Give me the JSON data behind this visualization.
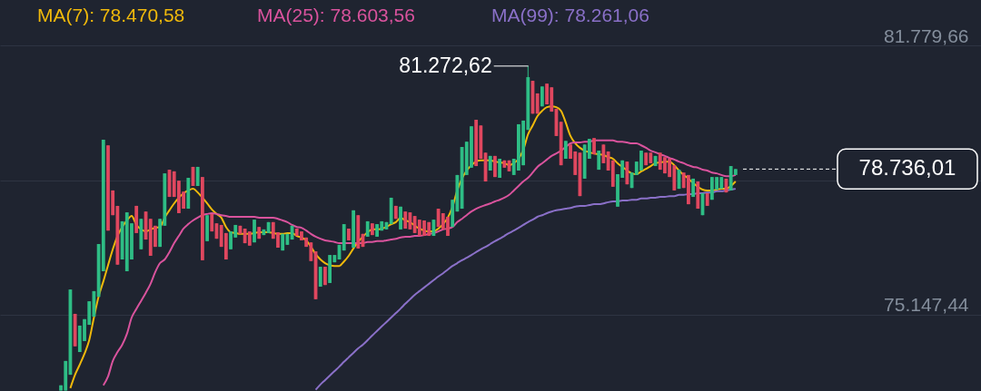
{
  "chart_data": {
    "type": "candlestick",
    "categories": [
      null,
      null,
      null,
      null,
      null,
      null,
      null,
      null,
      null,
      null,
      null,
      null,
      null,
      null,
      null,
      null,
      null,
      null,
      null,
      null,
      null,
      null,
      null,
      null,
      null,
      null,
      null,
      null,
      null,
      null,
      null,
      null,
      null,
      null,
      null,
      null,
      null,
      null,
      null,
      null,
      null,
      null,
      null,
      null,
      null,
      null,
      null,
      null,
      null,
      null,
      null,
      null,
      null,
      null,
      null,
      null,
      null,
      null,
      null,
      null,
      null,
      null,
      null,
      null,
      null,
      null,
      null,
      null,
      null,
      null,
      null,
      null,
      null,
      null,
      null,
      null,
      null,
      null,
      null,
      null,
      null,
      null,
      null,
      null,
      null,
      null,
      null,
      null,
      null,
      null,
      null,
      null,
      null,
      null,
      null,
      null,
      null,
      null,
      null,
      null,
      null,
      null,
      null,
      null,
      null,
      null,
      null,
      null,
      null,
      null,
      null,
      null,
      null,
      null,
      null,
      null,
      null,
      null,
      null,
      null,
      null,
      null,
      null,
      null,
      null,
      null,
      null,
      null,
      null,
      null,
      null,
      null,
      null,
      null,
      null,
      null,
      null,
      null,
      null,
      null,
      null,
      null,
      null,
      null
    ],
    "ohlc": [
      [
        73280,
        73410,
        73280,
        73410
      ],
      [
        73280,
        74010,
        73280,
        74010
      ],
      [
        73670,
        75770,
        73670,
        75770
      ],
      [
        75170,
        75170,
        74370,
        74370
      ],
      [
        74230,
        74880,
        74230,
        74880
      ],
      [
        74500,
        75040,
        74500,
        75040
      ],
      [
        74900,
        75480,
        74900,
        75480
      ],
      [
        75100,
        75730,
        75100,
        75730
      ],
      [
        75590,
        76890,
        75590,
        76890
      ],
      [
        76220,
        79460,
        76220,
        79460
      ],
      [
        79320,
        79320,
        77220,
        77220
      ],
      [
        78210,
        78210,
        77600,
        77600
      ],
      [
        77830,
        77830,
        76380,
        76380
      ],
      [
        76510,
        77450,
        76510,
        77450
      ],
      [
        76220,
        77670,
        76220,
        77670
      ],
      [
        76510,
        77400,
        76510,
        77400
      ],
      [
        77830,
        77830,
        77160,
        77160
      ],
      [
        76760,
        77510,
        76760,
        77510
      ],
      [
        77690,
        77690,
        77000,
        77000
      ],
      [
        77510,
        77510,
        76600,
        76600
      ],
      [
        77340,
        77340,
        76820,
        76820
      ],
      [
        76820,
        77510,
        76820,
        77510
      ],
      [
        77340,
        78630,
        77340,
        78630
      ],
      [
        78720,
        78720,
        78050,
        78050
      ],
      [
        78680,
        78680,
        78050,
        78050
      ],
      [
        78450,
        78450,
        77650,
        77650
      ],
      [
        78180,
        78180,
        77760,
        77760
      ],
      [
        77760,
        78520,
        77760,
        78520
      ],
      [
        78790,
        78790,
        78320,
        78320
      ],
      [
        78320,
        78790,
        78320,
        78790
      ],
      [
        78540,
        78540,
        76490,
        76490
      ],
      [
        76960,
        77600,
        76960,
        77600
      ],
      [
        77630,
        77630,
        77200,
        77200
      ],
      [
        77400,
        77400,
        77020,
        77020
      ],
      [
        77360,
        77360,
        76820,
        76820
      ],
      [
        77160,
        77160,
        76510,
        76510
      ],
      [
        76760,
        77200,
        76760,
        77200
      ],
      [
        77050,
        77360,
        77050,
        77360
      ],
      [
        77340,
        77340,
        77140,
        77140
      ],
      [
        77270,
        77270,
        76910,
        76910
      ],
      [
        77200,
        77200,
        76850,
        76850
      ],
      [
        76930,
        77490,
        76930,
        77490
      ],
      [
        77310,
        77310,
        77020,
        77020
      ],
      [
        77110,
        77250,
        77110,
        77250
      ],
      [
        77160,
        77430,
        77160,
        77430
      ],
      [
        77430,
        77430,
        77020,
        77020
      ],
      [
        77180,
        77180,
        76800,
        76800
      ],
      [
        76730,
        77140,
        76730,
        77140
      ],
      [
        76870,
        77140,
        76870,
        77140
      ],
      [
        77000,
        77340,
        77000,
        77340
      ],
      [
        77270,
        77270,
        77090,
        77090
      ],
      [
        77200,
        77200,
        76980,
        76980
      ],
      [
        77050,
        77050,
        76820,
        76820
      ],
      [
        76930,
        76930,
        76470,
        76470
      ],
      [
        76710,
        76710,
        75530,
        75530
      ],
      [
        75840,
        76330,
        75840,
        76330
      ],
      [
        76330,
        76330,
        75880,
        75880
      ],
      [
        75930,
        76620,
        75930,
        76620
      ],
      [
        76440,
        76620,
        76440,
        76620
      ],
      [
        76510,
        76870,
        76510,
        76870
      ],
      [
        76730,
        77380,
        76730,
        77380
      ],
      [
        77270,
        77270,
        76980,
        76980
      ],
      [
        76800,
        77720,
        76800,
        77720
      ],
      [
        77600,
        77600,
        76780,
        76780
      ],
      [
        77140,
        77140,
        76820,
        76820
      ],
      [
        77070,
        77450,
        77070,
        77450
      ],
      [
        77400,
        77400,
        77110,
        77110
      ],
      [
        77070,
        77380,
        77070,
        77380
      ],
      [
        77220,
        77450,
        77220,
        77450
      ],
      [
        77250,
        77430,
        77250,
        77430
      ],
      [
        77380,
        78030,
        77380,
        78030
      ],
      [
        77830,
        77830,
        77510,
        77510
      ],
      [
        77250,
        77810,
        77250,
        77810
      ],
      [
        77690,
        77690,
        77270,
        77270
      ],
      [
        77670,
        77670,
        77250,
        77250
      ],
      [
        77580,
        77580,
        77160,
        77160
      ],
      [
        77490,
        77490,
        77090,
        77090
      ],
      [
        77470,
        77470,
        77090,
        77090
      ],
      [
        77430,
        77430,
        77090,
        77090
      ],
      [
        77090,
        77490,
        77090,
        77490
      ],
      [
        77760,
        77760,
        77310,
        77310
      ],
      [
        77650,
        77650,
        77250,
        77250
      ],
      [
        77560,
        77560,
        77090,
        77090
      ],
      [
        77310,
        77980,
        77310,
        77980
      ],
      [
        77690,
        78590,
        77690,
        78590
      ],
      [
        77760,
        79280,
        77760,
        79280
      ],
      [
        78590,
        79410,
        78590,
        79410
      ],
      [
        78770,
        79790,
        78770,
        79790
      ],
      [
        79950,
        79950,
        78810,
        78810
      ],
      [
        79810,
        79810,
        78990,
        78990
      ],
      [
        79140,
        79140,
        78430,
        78430
      ],
      [
        78700,
        79060,
        78700,
        79060
      ],
      [
        79060,
        79060,
        78540,
        78540
      ],
      [
        78520,
        78990,
        78520,
        78990
      ],
      [
        78950,
        78950,
        78770,
        78770
      ],
      [
        78950,
        78950,
        78680,
        78680
      ],
      [
        78590,
        78990,
        78590,
        78990
      ],
      [
        78700,
        79840,
        78700,
        79840
      ],
      [
        78830,
        79930,
        78830,
        79930
      ],
      [
        79700,
        81272.62,
        79700,
        81000
      ],
      [
        80910,
        80910,
        80100,
        80100
      ],
      [
        80600,
        80600,
        80100,
        80100
      ],
      [
        80280,
        80770,
        80280,
        80770
      ],
      [
        80840,
        80840,
        80330,
        80330
      ],
      [
        80750,
        80750,
        80150,
        80150
      ],
      [
        80220,
        80220,
        79550,
        79550
      ],
      [
        79900,
        79900,
        78830,
        78830
      ],
      [
        78990,
        79430,
        78990,
        79430
      ],
      [
        79340,
        79340,
        78990,
        78990
      ],
      [
        79170,
        79170,
        78590,
        78590
      ],
      [
        79140,
        79140,
        78070,
        78070
      ],
      [
        78500,
        79340,
        78500,
        79340
      ],
      [
        78990,
        79480,
        78990,
        79480
      ],
      [
        79500,
        79500,
        79100,
        79100
      ],
      [
        78720,
        79190,
        78720,
        79190
      ],
      [
        79340,
        79340,
        78880,
        78880
      ],
      [
        79170,
        79170,
        78700,
        78700
      ],
      [
        78950,
        78950,
        78300,
        78300
      ],
      [
        77810,
        78610,
        77810,
        78610
      ],
      [
        78520,
        78950,
        78520,
        78950
      ],
      [
        78920,
        78920,
        78360,
        78360
      ],
      [
        78270,
        78650,
        78270,
        78650
      ],
      [
        78590,
        78920,
        78590,
        78920
      ],
      [
        78700,
        79190,
        78700,
        79190
      ],
      [
        79140,
        79140,
        78830,
        78830
      ],
      [
        79140,
        79140,
        78880,
        78880
      ],
      [
        78810,
        79060,
        78810,
        79060
      ],
      [
        79140,
        79140,
        78720,
        78720
      ],
      [
        79030,
        79030,
        78630,
        78630
      ],
      [
        78990,
        78990,
        78540,
        78540
      ],
      [
        78830,
        78830,
        78210,
        78210
      ],
      [
        78250,
        78720,
        78250,
        78720
      ],
      [
        78650,
        78650,
        78270,
        78270
      ],
      [
        78590,
        78590,
        77870,
        77870
      ],
      [
        78050,
        78500,
        78050,
        78500
      ],
      [
        78430,
        78430,
        77760,
        77760
      ],
      [
        77600,
        78140,
        77600,
        78140
      ],
      [
        78140,
        78140,
        77830,
        77830
      ],
      [
        77980,
        78540,
        77980,
        78540
      ],
      [
        78230,
        78540,
        78230,
        78540
      ],
      [
        78250,
        78540,
        78250,
        78540
      ],
      [
        78500,
        78500,
        78160,
        78160
      ],
      [
        78210,
        78810,
        78210,
        78810
      ],
      [
        78590,
        78740,
        78590,
        78736.01
      ]
    ],
    "colors": [
      "#2ebd85",
      "#2ebd85",
      "#2ebd85",
      "#e0475f",
      "#2ebd85",
      "#2ebd85",
      "#2ebd85",
      "#2ebd85",
      "#2ebd85",
      "#2ebd85",
      "#e0475f",
      "#e0475f",
      "#e0475f",
      "#2ebd85",
      "#2ebd85",
      "#2ebd85",
      "#e0475f",
      "#2ebd85",
      "#e0475f",
      "#e0475f",
      "#e0475f",
      "#2ebd85",
      "#2ebd85",
      "#e0475f",
      "#e0475f",
      "#e0475f",
      "#e0475f",
      "#2ebd85",
      "#e0475f",
      "#2ebd85",
      "#e0475f",
      "#2ebd85",
      "#e0475f",
      "#e0475f",
      "#e0475f",
      "#e0475f",
      "#2ebd85",
      "#2ebd85",
      "#e0475f",
      "#e0475f",
      "#e0475f",
      "#2ebd85",
      "#e0475f",
      "#2ebd85",
      "#2ebd85",
      "#e0475f",
      "#e0475f",
      "#2ebd85",
      "#2ebd85",
      "#2ebd85",
      "#e0475f",
      "#e0475f",
      "#e0475f",
      "#e0475f",
      "#e0475f",
      "#2ebd85",
      "#e0475f",
      "#2ebd85",
      "#2ebd85",
      "#2ebd85",
      "#2ebd85",
      "#e0475f",
      "#2ebd85",
      "#e0475f",
      "#e0475f",
      "#2ebd85",
      "#e0475f",
      "#2ebd85",
      "#2ebd85",
      "#2ebd85",
      "#2ebd85",
      "#e0475f",
      "#2ebd85",
      "#e0475f",
      "#e0475f",
      "#e0475f",
      "#e0475f",
      "#e0475f",
      "#e0475f",
      "#2ebd85",
      "#e0475f",
      "#e0475f",
      "#e0475f",
      "#2ebd85",
      "#2ebd85",
      "#2ebd85",
      "#2ebd85",
      "#2ebd85",
      "#e0475f",
      "#e0475f",
      "#e0475f",
      "#2ebd85",
      "#e0475f",
      "#2ebd85",
      "#e0475f",
      "#e0475f",
      "#2ebd85",
      "#2ebd85",
      "#2ebd85",
      "#2ebd85",
      "#e0475f",
      "#e0475f",
      "#2ebd85",
      "#e0475f",
      "#e0475f",
      "#e0475f",
      "#e0475f",
      "#2ebd85",
      "#e0475f",
      "#e0475f",
      "#e0475f",
      "#2ebd85",
      "#2ebd85",
      "#e0475f",
      "#2ebd85",
      "#e0475f",
      "#e0475f",
      "#e0475f",
      "#2ebd85",
      "#2ebd85",
      "#e0475f",
      "#2ebd85",
      "#2ebd85",
      "#2ebd85",
      "#e0475f",
      "#e0475f",
      "#2ebd85",
      "#e0475f",
      "#e0475f",
      "#e0475f",
      "#e0475f",
      "#2ebd85",
      "#e0475f",
      "#e0475f",
      "#2ebd85",
      "#e0475f",
      "#2ebd85",
      "#e0475f",
      "#2ebd85",
      "#2ebd85",
      "#2ebd85",
      "#e0475f",
      "#2ebd85",
      "#2ebd85"
    ],
    "series": [
      {
        "name": "MA(7): 78.470,58",
        "color": "#f0b90b",
        "type": "line",
        "values": [
          null,
          null,
          73340,
          73670,
          73920,
          74190,
          74520,
          75080,
          75600,
          75970,
          76370,
          76760,
          77090,
          77310,
          77470,
          77580,
          77360,
          77250,
          77200,
          77250,
          77290,
          77310,
          77540,
          77720,
          77890,
          78030,
          78140,
          78210,
          78250,
          78160,
          78030,
          77890,
          77740,
          77630,
          77540,
          77310,
          77180,
          77160,
          77140,
          77140,
          77140,
          77160,
          77180,
          77180,
          77180,
          77160,
          77140,
          77140,
          77160,
          77160,
          77090,
          77050,
          76980,
          76820,
          76640,
          76510,
          76420,
          76370,
          76350,
          76350,
          76460,
          76600,
          76780,
          76940,
          77070,
          77180,
          77250,
          77250,
          77270,
          77310,
          77380,
          77430,
          77540,
          77470,
          77430,
          77340,
          77270,
          77220,
          77200,
          77200,
          77270,
          77380,
          77540,
          77810,
          78210,
          78500,
          78700,
          78830,
          78920,
          78950,
          78950,
          78950,
          78920,
          78900,
          78880,
          78830,
          78880,
          78990,
          79210,
          79590,
          79810,
          80040,
          80170,
          80260,
          80280,
          80260,
          80170,
          79880,
          79550,
          79370,
          79260,
          79190,
          79150,
          79120,
          79100,
          79080,
          79030,
          78990,
          78880,
          78790,
          78700,
          78630,
          78610,
          78680,
          78740,
          78810,
          78880,
          78900,
          78920,
          78920,
          78830,
          78700,
          78590,
          78500,
          78390,
          78300,
          78230,
          78210,
          78210,
          78230,
          78250,
          78250,
          78320,
          78430
        ]
      },
      {
        "name": "MA(25): 78.603,56",
        "color": "#d9539d",
        "type": "line",
        "values": [
          null,
          null,
          null,
          null,
          null,
          null,
          null,
          null,
          null,
          73410,
          73630,
          74010,
          74230,
          74410,
          74680,
          75080,
          75290,
          75490,
          75690,
          75910,
          76200,
          76420,
          76510,
          76690,
          76910,
          77090,
          77270,
          77380,
          77470,
          77540,
          77600,
          77630,
          77650,
          77630,
          77600,
          77580,
          77560,
          77560,
          77560,
          77560,
          77560,
          77560,
          77540,
          77540,
          77540,
          77540,
          77510,
          77470,
          77430,
          77360,
          77310,
          77290,
          77220,
          77140,
          77070,
          77020,
          76980,
          76960,
          76940,
          76910,
          76910,
          76910,
          76910,
          76910,
          76910,
          76940,
          76940,
          76960,
          76960,
          76980,
          77000,
          77020,
          77050,
          77070,
          77070,
          77090,
          77090,
          77110,
          77140,
          77160,
          77200,
          77250,
          77270,
          77310,
          77430,
          77510,
          77600,
          77690,
          77760,
          77810,
          77850,
          77890,
          77940,
          77980,
          78030,
          78100,
          78210,
          78320,
          78430,
          78520,
          78650,
          78790,
          78880,
          78970,
          79060,
          79120,
          79190,
          79280,
          79370,
          79390,
          79390,
          79410,
          79410,
          79440,
          79440,
          79440,
          79440,
          79440,
          79410,
          79410,
          79390,
          79370,
          79370,
          79320,
          79260,
          79190,
          79150,
          79100,
          79060,
          79010,
          78970,
          78920,
          78880,
          78830,
          78790,
          78770,
          78720,
          78700,
          78650,
          78630,
          78590,
          78560,
          78560,
          78590
        ]
      },
      {
        "name": "MA(99): 78.261,06",
        "color": "#8a70c8",
        "type": "line",
        "values": [
          null,
          null,
          null,
          null,
          null,
          null,
          null,
          null,
          null,
          null,
          null,
          null,
          null,
          null,
          null,
          null,
          null,
          null,
          null,
          null,
          null,
          null,
          null,
          null,
          null,
          null,
          null,
          null,
          null,
          null,
          null,
          null,
          null,
          null,
          null,
          null,
          null,
          null,
          null,
          null,
          null,
          null,
          null,
          null,
          null,
          null,
          null,
          null,
          null,
          null,
          null,
          null,
          null,
          null,
          73300,
          73430,
          73540,
          73650,
          73760,
          73870,
          73990,
          74100,
          74210,
          74320,
          74410,
          74520,
          74640,
          74750,
          74860,
          74970,
          75080,
          75190,
          75300,
          75420,
          75530,
          75640,
          75730,
          75820,
          75910,
          76000,
          76090,
          76170,
          76260,
          76350,
          76420,
          76490,
          76550,
          76620,
          76690,
          76760,
          76820,
          76890,
          76960,
          77020,
          77090,
          77160,
          77220,
          77290,
          77360,
          77430,
          77490,
          77560,
          77600,
          77650,
          77690,
          77720,
          77740,
          77760,
          77780,
          77810,
          77830,
          77830,
          77850,
          77870,
          77870,
          77890,
          77920,
          77940,
          77940,
          77960,
          77960,
          77980,
          77980,
          78010,
          78010,
          78030,
          78030,
          78050,
          78050,
          78070,
          78070,
          78100,
          78100,
          78120,
          78120,
          78140,
          78140,
          78160,
          78160,
          78190,
          78190,
          78210,
          78230,
          78250
        ]
      }
    ],
    "ylim": [
      73270,
      82900
    ],
    "yticks": [
      {
        "value": 81779.66,
        "label": "81.779,66"
      },
      {
        "value": 78463.55,
        "label": null
      },
      {
        "value": 75147.44,
        "label": "75.147,44"
      }
    ],
    "grid": "y",
    "legend": "top",
    "annotations": [
      "81.272,62"
    ],
    "ref_lines": [
      {
        "axis": "y",
        "value": 78736.01,
        "label": "78.736,01",
        "line_style": "dashed",
        "color": "#ffffff"
      }
    ]
  }
}
